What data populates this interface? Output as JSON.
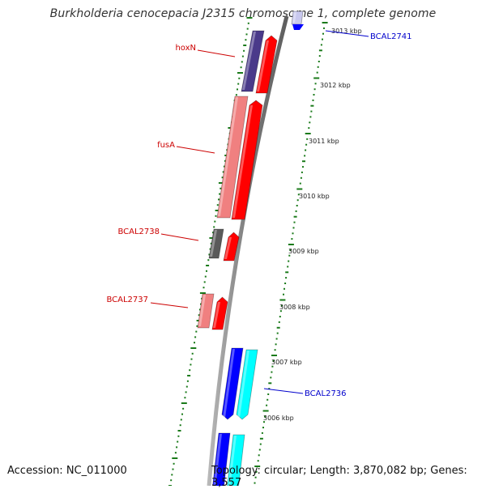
{
  "title": "Burkholderia cenocepacia J2315 chromosome 1, complete genome",
  "accession_label": "Accession: NC_011000",
  "topology_label": "Topology: circular; Length: 3,870,082 bp; Genes: 3,557",
  "colors": {
    "backbone": "#8c8c8c",
    "tick": "#1a7a1a",
    "gene_label_red": "#cc0000",
    "gene_label_blue": "#0000cc",
    "strand_forward_red": "#ff0000",
    "strand_forward_light": "#f08080",
    "hoxN_fill": "#4a3a8a",
    "gray_gene": "#5a5a5a",
    "blue_gene": "#0000ff",
    "cyan_gene": "#00ffff"
  },
  "scale_marks": [
    "3013 kbp",
    "3012 kbp",
    "3011 kbp",
    "3010 kbp",
    "3009 kbp",
    "3008 kbp",
    "3007 kbp",
    "3006 kbp"
  ],
  "genes": [
    {
      "name": "hoxN",
      "label_color": "red"
    },
    {
      "name": "fusA",
      "label_color": "red"
    },
    {
      "name": "BCAL2738",
      "label_color": "red"
    },
    {
      "name": "BCAL2737",
      "label_color": "red"
    },
    {
      "name": "BCAL2741",
      "label_color": "blue"
    },
    {
      "name": "BCAL2736",
      "label_color": "blue"
    }
  ]
}
